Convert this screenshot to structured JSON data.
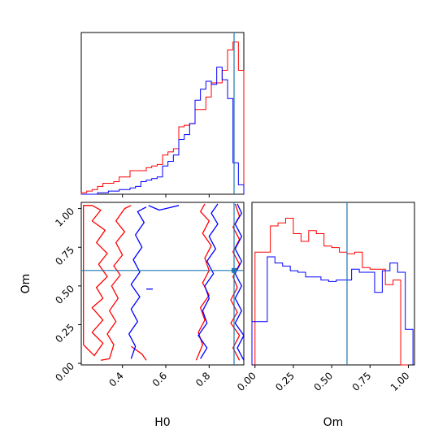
{
  "chart_data": [
    {
      "type": "histogram",
      "panel": "H0 marginal",
      "x_range": [
        0.21,
        0.96
      ],
      "truth_value": 0.915,
      "y_ticks_shown": false,
      "series": [
        {
          "color": "#ff0000",
          "bin_edges": [
            0.21,
            0.235,
            0.26,
            0.285,
            0.31,
            0.335,
            0.36,
            0.385,
            0.41,
            0.435,
            0.46,
            0.485,
            0.51,
            0.535,
            0.56,
            0.585,
            0.61,
            0.635,
            0.66,
            0.685,
            0.71,
            0.735,
            0.76,
            0.785,
            0.81,
            0.835,
            0.86,
            0.885,
            0.91,
            0.935,
            0.96
          ],
          "heights": [
            0.01,
            0.02,
            0.03,
            0.05,
            0.07,
            0.07,
            0.08,
            0.11,
            0.11,
            0.15,
            0.15,
            0.15,
            0.17,
            0.18,
            0.19,
            0.25,
            0.27,
            0.29,
            0.43,
            0.44,
            0.45,
            0.54,
            0.54,
            0.62,
            0.71,
            0.71,
            0.79,
            0.92,
            0.97,
            0.79
          ]
        },
        {
          "color": "#0000ff",
          "bin_edges": [
            0.21,
            0.235,
            0.26,
            0.285,
            0.31,
            0.335,
            0.36,
            0.385,
            0.41,
            0.435,
            0.46,
            0.485,
            0.51,
            0.535,
            0.56,
            0.585,
            0.61,
            0.635,
            0.66,
            0.685,
            0.71,
            0.735,
            0.76,
            0.785,
            0.81,
            0.835,
            0.86,
            0.885,
            0.91,
            0.935,
            0.96
          ],
          "heights": [
            0.0,
            0.0,
            0.0,
            0.01,
            0.01,
            0.02,
            0.02,
            0.03,
            0.03,
            0.04,
            0.05,
            0.08,
            0.09,
            0.1,
            0.11,
            0.18,
            0.21,
            0.25,
            0.35,
            0.38,
            0.45,
            0.6,
            0.67,
            0.72,
            0.7,
            0.81,
            0.73,
            0.61,
            0.2,
            0.06
          ]
        }
      ]
    },
    {
      "type": "contour",
      "panel": "H0 vs Om",
      "xlabel": "H0",
      "ylabel": "Om",
      "x_range": [
        0.21,
        0.96
      ],
      "y_range": [
        -0.01,
        1.04
      ],
      "x_ticks": [
        0.4,
        0.6,
        0.8
      ],
      "x_tick_labels": [
        "0.4",
        "0.6",
        "0.8"
      ],
      "y_ticks": [
        0.0,
        0.25,
        0.5,
        0.75,
        1.0
      ],
      "y_tick_labels": [
        "0.00",
        "0.25",
        "0.50",
        "0.75",
        "1.00"
      ],
      "truth": {
        "x": 0.915,
        "y": 0.6
      },
      "series": [
        {
          "color": "#ff0000",
          "contours": [
            [
              [
                0.22,
                0.12
              ],
              [
                0.27,
                0.05
              ],
              [
                0.31,
                0.13
              ],
              [
                0.26,
                0.2
              ],
              [
                0.31,
                0.28
              ],
              [
                0.26,
                0.36
              ],
              [
                0.31,
                0.42
              ],
              [
                0.28,
                0.49
              ],
              [
                0.33,
                0.56
              ],
              [
                0.29,
                0.64
              ],
              [
                0.33,
                0.71
              ],
              [
                0.28,
                0.78
              ],
              [
                0.32,
                0.86
              ],
              [
                0.26,
                0.92
              ],
              [
                0.3,
                0.99
              ],
              [
                0.26,
                1.02
              ],
              [
                0.22,
                1.02
              ],
              [
                0.22,
                0.12
              ]
            ],
            [
              [
                0.3,
                0.02
              ],
              [
                0.34,
                0.03
              ],
              [
                0.36,
                0.12
              ],
              [
                0.33,
                0.19
              ],
              [
                0.37,
                0.27
              ],
              [
                0.34,
                0.34
              ],
              [
                0.38,
                0.42
              ],
              [
                0.35,
                0.5
              ],
              [
                0.39,
                0.57
              ],
              [
                0.36,
                0.63
              ],
              [
                0.4,
                0.7
              ],
              [
                0.37,
                0.78
              ],
              [
                0.41,
                0.85
              ],
              [
                0.37,
                0.92
              ],
              [
                0.41,
                1.0
              ],
              [
                0.44,
                1.02
              ]
            ],
            [
              [
                0.44,
                0.11
              ],
              [
                0.49,
                0.06
              ],
              [
                0.51,
                0.02
              ]
            ],
            [
              [
                0.74,
                0.02
              ],
              [
                0.77,
                0.12
              ],
              [
                0.75,
                0.2
              ],
              [
                0.78,
                0.28
              ],
              [
                0.76,
                0.36
              ],
              [
                0.8,
                0.44
              ],
              [
                0.77,
                0.52
              ],
              [
                0.8,
                0.6
              ],
              [
                0.78,
                0.68
              ],
              [
                0.81,
                0.76
              ],
              [
                0.77,
                0.84
              ],
              [
                0.8,
                0.92
              ],
              [
                0.76,
                0.98
              ],
              [
                0.78,
                1.03
              ]
            ],
            [
              [
                0.94,
                0.02
              ],
              [
                0.91,
                0.1
              ],
              [
                0.94,
                0.18
              ],
              [
                0.9,
                0.26
              ],
              [
                0.93,
                0.33
              ],
              [
                0.9,
                0.41
              ],
              [
                0.93,
                0.49
              ],
              [
                0.91,
                0.56
              ],
              [
                0.94,
                0.64
              ],
              [
                0.91,
                0.72
              ],
              [
                0.94,
                0.8
              ],
              [
                0.91,
                0.88
              ],
              [
                0.94,
                0.95
              ],
              [
                0.92,
                1.03
              ]
            ]
          ]
        },
        {
          "color": "#0000ff",
          "contours": [
            [
              [
                0.44,
                0.03
              ],
              [
                0.46,
                0.11
              ],
              [
                0.43,
                0.19
              ],
              [
                0.47,
                0.27
              ],
              [
                0.44,
                0.35
              ],
              [
                0.48,
                0.43
              ],
              [
                0.44,
                0.51
              ],
              [
                0.48,
                0.59
              ],
              [
                0.45,
                0.67
              ],
              [
                0.49,
                0.75
              ],
              [
                0.46,
                0.83
              ],
              [
                0.5,
                0.91
              ],
              [
                0.47,
                0.98
              ],
              [
                0.51,
                1.01
              ]
            ],
            [
              [
                0.52,
                1.02
              ],
              [
                0.57,
                0.99
              ],
              [
                0.6,
                1.0
              ],
              [
                0.66,
                1.02
              ]
            ],
            [
              [
                0.76,
                0.03
              ],
              [
                0.79,
                0.1
              ],
              [
                0.75,
                0.18
              ],
              [
                0.79,
                0.26
              ],
              [
                0.77,
                0.34
              ],
              [
                0.8,
                0.42
              ],
              [
                0.78,
                0.5
              ],
              [
                0.82,
                0.58
              ],
              [
                0.79,
                0.66
              ],
              [
                0.83,
                0.74
              ],
              [
                0.8,
                0.82
              ],
              [
                0.84,
                0.9
              ],
              [
                0.81,
                0.97
              ],
              [
                0.84,
                1.03
              ]
            ],
            [
              [
                0.96,
                0.02
              ],
              [
                0.93,
                0.1
              ],
              [
                0.96,
                0.18
              ],
              [
                0.92,
                0.26
              ],
              [
                0.95,
                0.34
              ],
              [
                0.92,
                0.42
              ],
              [
                0.95,
                0.5
              ],
              [
                0.92,
                0.58
              ],
              [
                0.95,
                0.66
              ],
              [
                0.92,
                0.74
              ],
              [
                0.95,
                0.82
              ],
              [
                0.92,
                0.9
              ],
              [
                0.95,
                0.97
              ],
              [
                0.93,
                1.03
              ]
            ],
            [
              [
                0.51,
                0.48
              ],
              [
                0.54,
                0.48
              ]
            ]
          ]
        }
      ]
    },
    {
      "type": "histogram",
      "panel": "Om marginal",
      "xlabel": "Om",
      "x_range": [
        -0.02,
        1.04
      ],
      "x_ticks": [
        0.0,
        0.25,
        0.5,
        0.75,
        1.0
      ],
      "x_tick_labels": [
        "0.00",
        "0.25",
        "0.50",
        "0.75",
        "1.00"
      ],
      "truth_value": 0.6,
      "y_ticks_shown": false,
      "series": [
        {
          "color": "#ff0000",
          "bin_edges": [
            0.0,
            0.05,
            0.1,
            0.15,
            0.2,
            0.25,
            0.3,
            0.35,
            0.4,
            0.45,
            0.5,
            0.55,
            0.6,
            0.65,
            0.7,
            0.75,
            0.8,
            0.85,
            0.9,
            0.95,
            1.0
          ],
          "heights": [
            0.73,
            0.73,
            0.9,
            0.92,
            0.95,
            0.85,
            0.8,
            0.87,
            0.85,
            0.77,
            0.76,
            0.73,
            0.72,
            0.73,
            0.63,
            0.62,
            0.62,
            0.52,
            0.55,
            0.0
          ],
          "tail_to_end": 0.0
        },
        {
          "color": "#0000ff",
          "bin_edges": [
            -0.02,
            0.03,
            0.08,
            0.13,
            0.18,
            0.23,
            0.28,
            0.33,
            0.38,
            0.43,
            0.48,
            0.53,
            0.58,
            0.63,
            0.68,
            0.73,
            0.78,
            0.83,
            0.88,
            0.93,
            0.98,
            1.03
          ],
          "heights": [
            0.28,
            0.28,
            0.7,
            0.66,
            0.64,
            0.61,
            0.6,
            0.57,
            0.57,
            0.55,
            0.54,
            0.55,
            0.55,
            0.62,
            0.6,
            0.6,
            0.47,
            0.61,
            0.66,
            0.6,
            0.23
          ]
        }
      ]
    }
  ]
}
